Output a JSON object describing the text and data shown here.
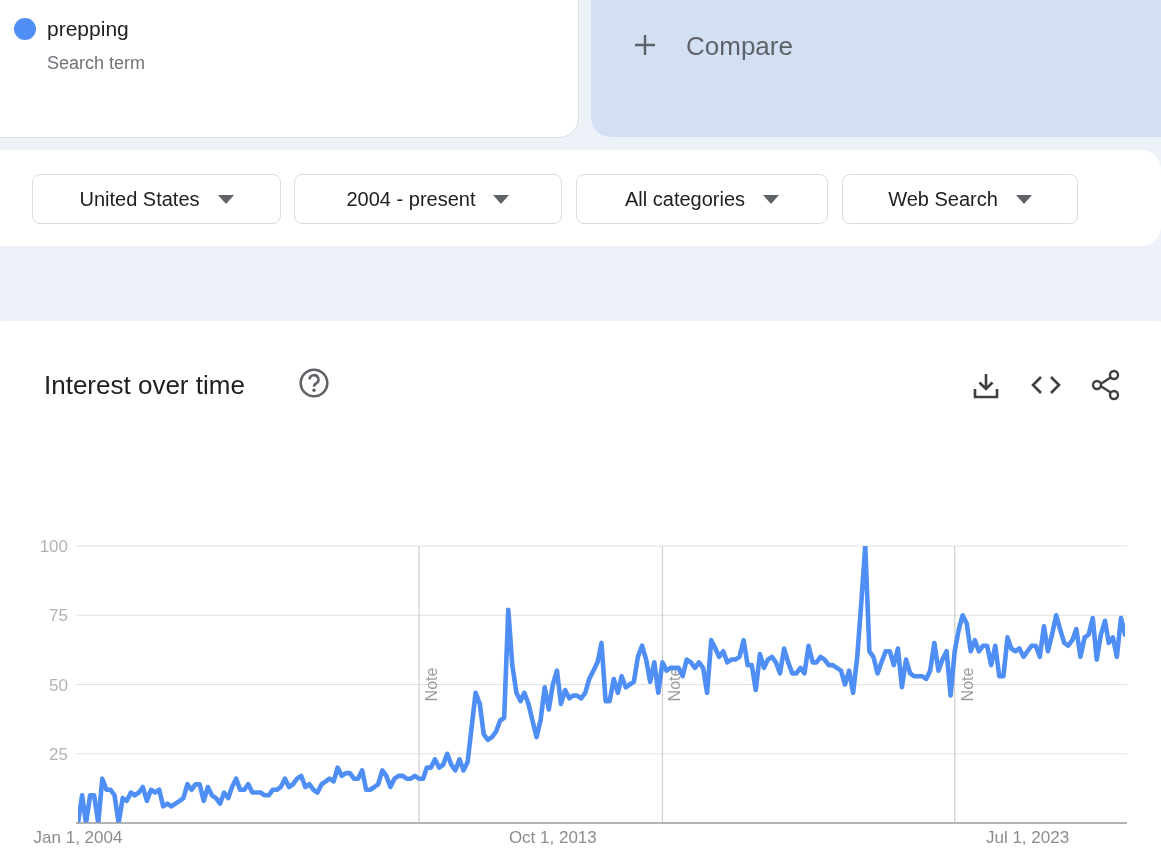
{
  "chart_data": {
    "type": "line",
    "title": "Interest over time",
    "annotations": [
      "Search term",
      "Compare",
      "United States",
      "2004 - present",
      "All categories",
      "Web Search"
    ],
    "x": [
      "2004-01",
      "2004-02",
      "2004-03",
      "2004-04",
      "2004-05",
      "2004-06",
      "2004-07",
      "2004-08",
      "2004-09",
      "2004-10",
      "2004-11",
      "2004-12",
      "2005-01",
      "2005-02",
      "2005-03",
      "2005-04",
      "2005-05",
      "2005-06",
      "2005-07",
      "2005-08",
      "2005-09",
      "2005-10",
      "2005-11",
      "2005-12",
      "2006-01",
      "2006-02",
      "2006-03",
      "2006-04",
      "2006-05",
      "2006-06",
      "2006-07",
      "2006-08",
      "2006-09",
      "2006-10",
      "2006-11",
      "2006-12",
      "2007-01",
      "2007-02",
      "2007-03",
      "2007-04",
      "2007-05",
      "2007-06",
      "2007-07",
      "2007-08",
      "2007-09",
      "2007-10",
      "2007-11",
      "2007-12",
      "2008-01",
      "2008-02",
      "2008-03",
      "2008-04",
      "2008-05",
      "2008-06",
      "2008-07",
      "2008-08",
      "2008-09",
      "2008-10",
      "2008-11",
      "2008-12",
      "2009-01",
      "2009-02",
      "2009-03",
      "2009-04",
      "2009-05",
      "2009-06",
      "2009-07",
      "2009-08",
      "2009-09",
      "2009-10",
      "2009-11",
      "2009-12",
      "2010-01",
      "2010-02",
      "2010-03",
      "2010-04",
      "2010-05",
      "2010-06",
      "2010-07",
      "2010-08",
      "2010-09",
      "2010-10",
      "2010-11",
      "2010-12",
      "2011-01",
      "2011-02",
      "2011-03",
      "2011-04",
      "2011-05",
      "2011-06",
      "2011-07",
      "2011-08",
      "2011-09",
      "2011-10",
      "2011-11",
      "2011-12",
      "2012-01",
      "2012-02",
      "2012-03",
      "2012-04",
      "2012-05",
      "2012-06",
      "2012-07",
      "2012-08",
      "2012-09",
      "2012-10",
      "2012-11",
      "2012-12",
      "2013-01",
      "2013-02",
      "2013-03",
      "2013-04",
      "2013-05",
      "2013-06",
      "2013-07",
      "2013-08",
      "2013-09",
      "2013-10",
      "2013-11",
      "2013-12",
      "2014-01",
      "2014-02",
      "2014-03",
      "2014-04",
      "2014-05",
      "2014-06",
      "2014-07",
      "2014-08",
      "2014-09",
      "2014-10",
      "2014-11",
      "2014-12",
      "2015-01",
      "2015-02",
      "2015-03",
      "2015-04",
      "2015-05",
      "2015-06",
      "2015-07",
      "2015-08",
      "2015-09",
      "2015-10",
      "2015-11",
      "2015-12",
      "2016-01",
      "2016-02",
      "2016-03",
      "2016-04",
      "2016-05",
      "2016-06",
      "2016-07",
      "2016-08",
      "2016-09",
      "2016-10",
      "2016-11",
      "2016-12",
      "2017-01",
      "2017-02",
      "2017-03",
      "2017-04",
      "2017-05",
      "2017-06",
      "2017-07",
      "2017-08",
      "2017-09",
      "2017-10",
      "2017-11",
      "2017-12",
      "2018-01",
      "2018-02",
      "2018-03",
      "2018-04",
      "2018-05",
      "2018-06",
      "2018-07",
      "2018-08",
      "2018-09",
      "2018-10",
      "2018-11",
      "2018-12",
      "2019-01",
      "2019-02",
      "2019-03",
      "2019-04",
      "2019-05",
      "2019-06",
      "2019-07",
      "2019-08",
      "2019-09",
      "2019-10",
      "2019-11",
      "2019-12",
      "2020-01",
      "2020-02",
      "2020-03",
      "2020-04",
      "2020-05",
      "2020-06",
      "2020-07",
      "2020-08",
      "2020-09",
      "2020-10",
      "2020-11",
      "2020-12",
      "2021-01",
      "2021-02",
      "2021-03",
      "2021-04",
      "2021-05",
      "2021-06",
      "2021-07",
      "2021-08",
      "2021-09",
      "2021-10",
      "2021-11",
      "2021-12",
      "2022-01",
      "2022-02",
      "2022-03",
      "2022-04",
      "2022-05",
      "2022-06",
      "2022-07",
      "2022-08",
      "2022-09",
      "2022-10",
      "2022-11",
      "2022-12",
      "2023-01",
      "2023-02",
      "2023-03",
      "2023-04",
      "2023-05",
      "2023-06",
      "2023-07",
      "2023-08",
      "2023-09",
      "2023-10",
      "2023-11",
      "2023-12",
      "2024-01",
      "2024-02",
      "2024-03",
      "2024-04",
      "2024-05",
      "2024-06",
      "2024-07",
      "2024-08",
      "2024-09",
      "2024-10",
      "2024-11",
      "2024-12",
      "2025-01",
      "2025-02",
      "2025-03",
      "2025-04",
      "2025-05",
      "2025-06",
      "2025-07"
    ],
    "series": [
      {
        "name": "prepping",
        "color": "#4f8ef5",
        "values": [
          0,
          10,
          0,
          10,
          10,
          0,
          16,
          12,
          12,
          10,
          0,
          9,
          8,
          11,
          10,
          11,
          13,
          8,
          12,
          11,
          12,
          6,
          7,
          6,
          7,
          8,
          9,
          14,
          12,
          14,
          14,
          8,
          13,
          10,
          9,
          7,
          11,
          9,
          13,
          16,
          12,
          12,
          14,
          11,
          11,
          11,
          10,
          10,
          12,
          12,
          13,
          16,
          13,
          14,
          16,
          17,
          13,
          14,
          12,
          11,
          14,
          15,
          16,
          15,
          20,
          17,
          18,
          18,
          16,
          16,
          19,
          12,
          12,
          13,
          14,
          19,
          17,
          13,
          16,
          17,
          17,
          16,
          16,
          17,
          16,
          16,
          20,
          20,
          23,
          20,
          21,
          25,
          21,
          19,
          23,
          19,
          22,
          35,
          47,
          43,
          32,
          30,
          31,
          33,
          37,
          38,
          77,
          57,
          47,
          44,
          47,
          43,
          37,
          31,
          37,
          49,
          41,
          50,
          55,
          43,
          48,
          45,
          46,
          46,
          45,
          47,
          52,
          55,
          58,
          65,
          44,
          44,
          52,
          47,
          53,
          49,
          50,
          51,
          60,
          64,
          59,
          51,
          58,
          47,
          58,
          55,
          56,
          56,
          56,
          53,
          59,
          58,
          56,
          58,
          56,
          47,
          66,
          63,
          60,
          62,
          58,
          59,
          59,
          60,
          66,
          57,
          57,
          48,
          61,
          56,
          59,
          60,
          58,
          54,
          63,
          58,
          54,
          54,
          56,
          54,
          64,
          58,
          58,
          60,
          59,
          57,
          57,
          56,
          55,
          50,
          55,
          47,
          60,
          80,
          100,
          62,
          60,
          54,
          58,
          62,
          62,
          57,
          63,
          49,
          59,
          54,
          53,
          53,
          53,
          52,
          55,
          65,
          55,
          59,
          62,
          46,
          62,
          70,
          75,
          72,
          62,
          66,
          62,
          64,
          64,
          57,
          64,
          53,
          53,
          67,
          63,
          62,
          63,
          60,
          62,
          64,
          64,
          60,
          71,
          62,
          68,
          75,
          70,
          65,
          64,
          66,
          70,
          60,
          67,
          68,
          74,
          59,
          68,
          73,
          65,
          67,
          60,
          74,
          68
        ]
      }
    ],
    "xlim": [
      "2004-01",
      "2025-07"
    ],
    "xticks": [
      {
        "value": "2004-01-01",
        "label": "Jan 1, 2004"
      },
      {
        "value": "2013-10-01",
        "label": "Oct 1, 2013"
      },
      {
        "value": "2023-07-01",
        "label": "Jul 1, 2023"
      }
    ],
    "ylim": [
      0,
      100
    ],
    "yticks": [
      {
        "value": 0,
        "label": null
      },
      25,
      50,
      75,
      100
    ],
    "grid": "y",
    "legend": "top left",
    "marker": "none",
    "line_style": "solid",
    "ref_lines": [
      {
        "axis": "x",
        "value": "2011-01-01",
        "label": "Note",
        "color": "#cfcfcf"
      },
      {
        "axis": "x",
        "value": "2016-01-01",
        "label": "Note",
        "color": "#cfcfcf"
      },
      {
        "axis": "x",
        "value": "2022-01-01",
        "label": "Note",
        "color": "#cfcfcf"
      }
    ]
  }
}
